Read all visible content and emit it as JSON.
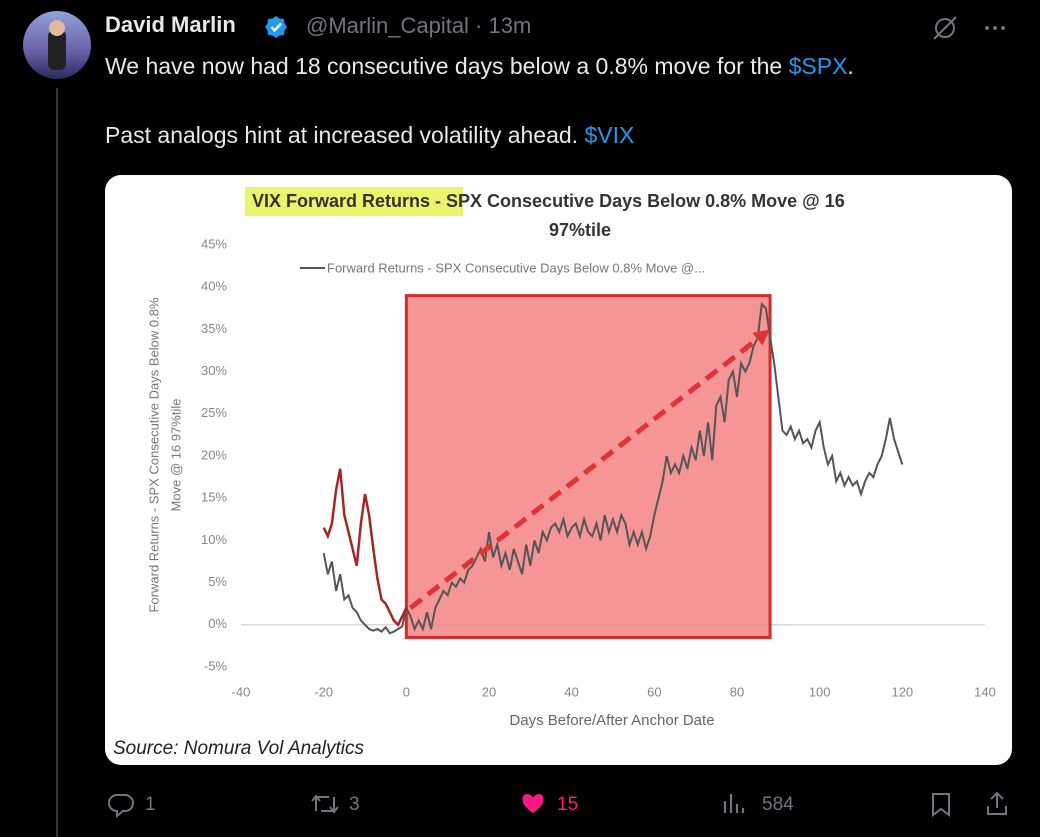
{
  "tweet": {
    "name": "David Marlin",
    "meta": "@Marlin_Capital · 13m",
    "line1": "We have now had 18 consecutive days below a 0.8% move for the ",
    "cashtag1": "$SPX",
    "line1_end": ".",
    "line2": "Past analogs hint at increased volatility ahead. ",
    "cashtag2": "$VIX",
    "replies": 1,
    "reposts": 3,
    "likes": 15,
    "views": 584
  },
  "chart_data": {
    "type": "line",
    "title_highlight": "VIX Forward Returns - ",
    "title_lines": [
      "SPX Consecutive Days Below 0.8% Move @ 16",
      "97%tile"
    ],
    "ylabel_lines": [
      "Forward Returns - SPX Consecutive Days Below 0.8%",
      "Move @ 16 97%tile"
    ],
    "xlabel": "Days Before/After Anchor Date",
    "source": "Source: Nomura Vol Analytics",
    "legend": "top",
    "grid": false,
    "xlim": [
      -40,
      140
    ],
    "xticks": [
      -40,
      -20,
      0,
      20,
      40,
      60,
      80,
      100,
      120,
      140
    ],
    "ylim": [
      -5,
      45
    ],
    "yticks": [
      {
        "value": -5,
        "label": "-5%"
      },
      {
        "value": 0,
        "label": "0%"
      },
      {
        "value": 5,
        "label": "5%"
      },
      {
        "value": 10,
        "label": "10%"
      },
      {
        "value": 15,
        "label": "15%"
      },
      {
        "value": 20,
        "label": "20%"
      },
      {
        "value": 25,
        "label": "25%"
      },
      {
        "value": 30,
        "label": "30%"
      },
      {
        "value": 35,
        "label": "35%"
      },
      {
        "value": 40,
        "label": "40%"
      },
      {
        "value": 45,
        "label": "45%"
      }
    ],
    "x": [
      -20,
      -19,
      -18,
      -17,
      -16,
      -15,
      -14,
      -13,
      -12,
      -11,
      -10,
      -9,
      -8,
      -7,
      -6,
      -5,
      -4,
      -3,
      -2,
      -1,
      0,
      1,
      2,
      3,
      4,
      5,
      6,
      7,
      8,
      9,
      10,
      11,
      12,
      13,
      14,
      15,
      16,
      17,
      18,
      19,
      20,
      21,
      22,
      23,
      24,
      25,
      26,
      27,
      28,
      29,
      30,
      31,
      32,
      33,
      34,
      35,
      36,
      37,
      38,
      39,
      40,
      41,
      42,
      43,
      44,
      45,
      46,
      47,
      48,
      49,
      50,
      51,
      52,
      53,
      54,
      55,
      56,
      57,
      58,
      59,
      60,
      61,
      62,
      63,
      64,
      65,
      66,
      67,
      68,
      69,
      70,
      71,
      72,
      73,
      74,
      75,
      76,
      77,
      78,
      79,
      80,
      81,
      82,
      83,
      84,
      85,
      86,
      87,
      88,
      89,
      90,
      91,
      92,
      93,
      94,
      95,
      96,
      97,
      98,
      99,
      100,
      101,
      102,
      103,
      104,
      105,
      106,
      107,
      108,
      109,
      110,
      111,
      112,
      113,
      114,
      115,
      116,
      117,
      118,
      119,
      120
    ],
    "series": [
      {
        "name": "Forward Returns - SPX Consecutive Days Below 0.8% Move @...",
        "color": "#555555",
        "values": [
          8.5,
          6,
          7.5,
          4,
          6,
          3,
          3.5,
          2,
          1.5,
          0.5,
          0,
          -0.5,
          -0.7,
          -0.5,
          -0.8,
          -0.3,
          -1,
          -0.8,
          -0.5,
          -0.2,
          2,
          1,
          -0.5,
          0.5,
          -0.5,
          1.5,
          -0.5,
          2,
          3,
          4,
          3.5,
          5,
          4.5,
          5.5,
          5,
          6.5,
          7,
          8,
          9,
          7.5,
          11,
          8,
          9.5,
          7,
          8.5,
          6.5,
          9,
          7.5,
          6,
          9.5,
          7,
          10,
          8.5,
          11,
          10,
          11.5,
          12,
          11,
          12.5,
          10.5,
          11.5,
          12,
          10.5,
          12.5,
          11,
          10.5,
          12,
          10,
          13,
          11,
          12.5,
          11,
          13,
          12,
          9.5,
          11,
          9.5,
          11,
          9,
          10.5,
          13,
          15,
          17,
          20,
          18,
          19,
          18,
          20,
          18.5,
          21,
          19.5,
          23,
          20,
          24,
          19.5,
          26,
          27,
          24,
          29,
          30,
          27,
          31,
          30,
          31,
          33,
          34,
          38,
          37.5,
          34,
          31,
          27,
          23,
          22.5,
          23.5,
          22,
          23,
          21.5,
          22,
          21,
          23,
          24,
          21,
          19,
          20,
          17,
          18,
          16.5,
          17.5,
          16.5,
          17,
          15.5,
          17,
          18,
          17.5,
          19,
          20,
          22,
          24.5,
          22,
          20.5,
          19
        ]
      }
    ],
    "annotation_line": {
      "color": "#a82424",
      "x": [
        -20,
        -19,
        -18,
        -17,
        -16,
        -15,
        -14,
        -13,
        -12,
        -11,
        -10,
        -9,
        -8,
        -7,
        -6,
        -5,
        -4,
        -3,
        -2,
        -1,
        0
      ],
      "y": [
        11.5,
        10.5,
        12,
        16,
        18.5,
        13,
        11,
        9,
        7,
        12,
        15.5,
        13,
        9,
        5.5,
        3,
        2.5,
        1.5,
        0.5,
        0,
        1,
        2
      ]
    },
    "highlight_box": {
      "color": "#f47a7a",
      "x": [
        0,
        88
      ],
      "y": [
        -1.5,
        39
      ]
    },
    "trend_arrow": {
      "color": "#e03434",
      "x": [
        1,
        88
      ],
      "y": [
        2,
        35
      ]
    }
  }
}
